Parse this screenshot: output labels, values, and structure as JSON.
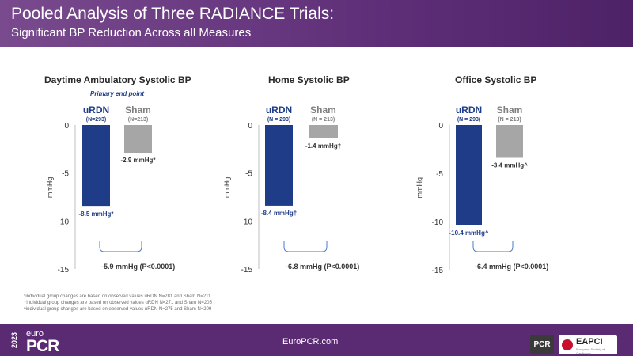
{
  "header": {
    "title": "Pooled Analysis of Three RADIANCE Trials:",
    "subtitle": "Significant BP Reduction Across all Measures"
  },
  "chart_data": [
    {
      "type": "bar",
      "title": "Daytime Ambulatory Systolic BP",
      "note": "Primary end point",
      "ylabel": "mmHg",
      "ylim": [
        -15,
        0
      ],
      "yticks": [
        0,
        -5,
        -10,
        -15
      ],
      "categories": [
        {
          "name": "uRDN",
          "n": "(N=293)",
          "value": -8.5,
          "value_label": "-8.5 mmHg*"
        },
        {
          "name": "Sham",
          "n": "(N=213)",
          "value": -2.9,
          "value_label": "-2.9 mmHg*"
        }
      ],
      "difference": "-5.9 mmHg (P<0.0001)"
    },
    {
      "type": "bar",
      "title": "Home Systolic BP",
      "ylabel": "mmHg",
      "ylim": [
        -15,
        0
      ],
      "yticks": [
        0,
        -5,
        -10,
        -15
      ],
      "categories": [
        {
          "name": "uRDN",
          "n": "(N = 293)",
          "value": -8.4,
          "value_label": "-8.4 mmHg†"
        },
        {
          "name": "Sham",
          "n": "(N = 213)",
          "value": -1.4,
          "value_label": "-1.4 mmHg†"
        }
      ],
      "difference": "-6.8 mmHg (P<0.0001)"
    },
    {
      "type": "bar",
      "title": "Office Systolic BP",
      "ylabel": "mmHg",
      "ylim": [
        -15,
        0
      ],
      "yticks": [
        0,
        -5,
        -10,
        -15
      ],
      "categories": [
        {
          "name": "uRDN",
          "n": "(N = 293)",
          "value": -10.4,
          "value_label": "-10.4 mmHg^"
        },
        {
          "name": "Sham",
          "n": "(N = 213)",
          "value": -3.4,
          "value_label": "-3.4 mmHg^"
        }
      ],
      "difference": "-6.4 mmHg (P<0.0001)"
    }
  ],
  "colors": {
    "urdn": "#1f3c88",
    "sham": "#a6a6a6",
    "header": "#5e2f78",
    "footer": "#5a2a73"
  },
  "footnotes": [
    "*individual group changes are based on observed values uRDN N=281 and Sham N=211",
    "†individual group changes are based on observed values uRDN N=271 and Sham N=205",
    "^individual group changes are based on observed values uRDN N=275 and Sham N=209"
  ],
  "footer": {
    "year": "2023",
    "brand_small": "euro",
    "brand_big": "PCR",
    "url": "EuroPCR.com",
    "logo_pcr": "PCR",
    "logo_eapci": "EAPCI",
    "logo_eapci_sub": "European Society of Cardiology"
  }
}
